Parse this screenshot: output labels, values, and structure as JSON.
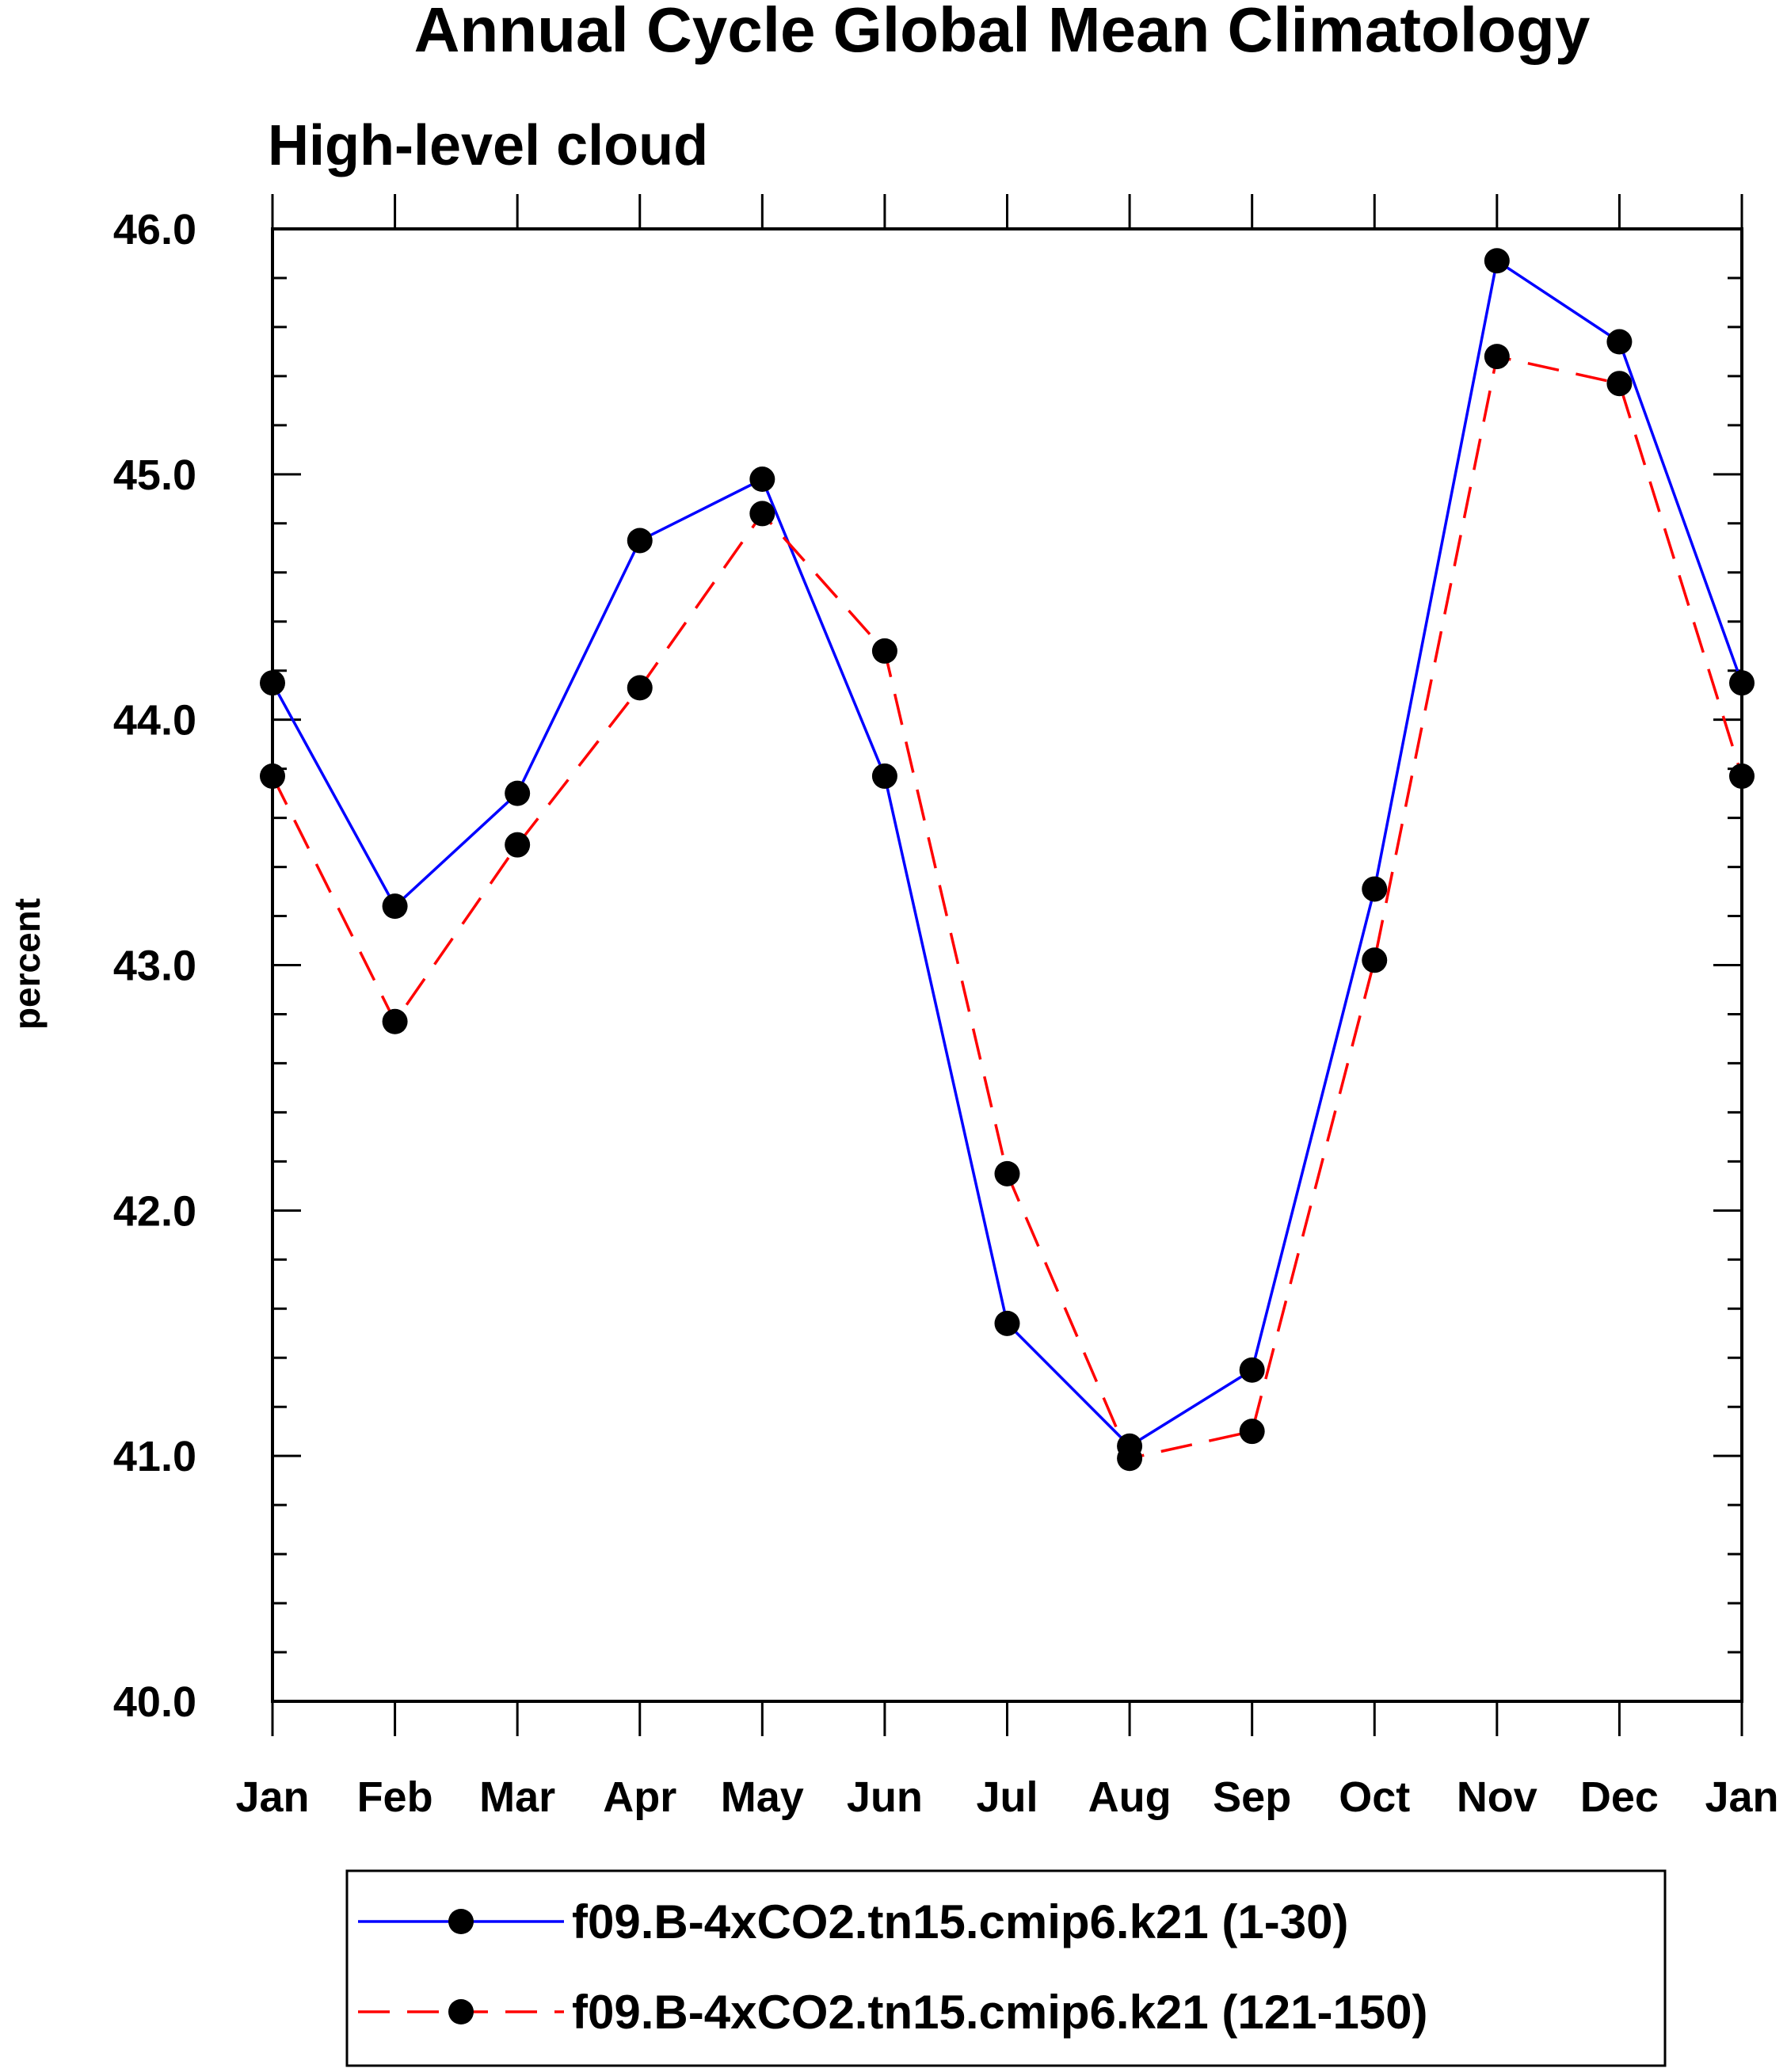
{
  "chart_data": {
    "type": "line",
    "title": "Annual Cycle Global Mean Climatology",
    "subtitle": "High-level cloud",
    "xlabel": "",
    "ylabel": "percent",
    "categories": [
      "Jan",
      "Feb",
      "Mar",
      "Apr",
      "May",
      "Jun",
      "Jul",
      "Aug",
      "Sep",
      "Oct",
      "Nov",
      "Dec",
      "Jan"
    ],
    "ylim": [
      40.0,
      46.0
    ],
    "yticks": [
      "40.0",
      "41.0",
      "42.0",
      "43.0",
      "44.0",
      "45.0",
      "46.0"
    ],
    "grid": false,
    "legend_position": "bottom",
    "series": [
      {
        "name": "f09.B-4xCO2.tn15.cmip6.k21 (1-30)",
        "color": "#0000ff",
        "dash": "solid",
        "marker": "filled-circle",
        "values": [
          44.15,
          43.24,
          43.7,
          44.73,
          44.98,
          43.77,
          41.54,
          41.04,
          41.35,
          43.31,
          45.87,
          45.54,
          44.15
        ]
      },
      {
        "name": "f09.B-4xCO2.tn15.cmip6.k21 (121-150)",
        "color": "#ff0000",
        "dash": "dashed",
        "marker": "filled-circle",
        "values": [
          43.77,
          42.77,
          43.49,
          44.13,
          44.84,
          44.28,
          42.15,
          40.99,
          41.1,
          43.02,
          45.48,
          45.37,
          43.77
        ]
      }
    ]
  }
}
